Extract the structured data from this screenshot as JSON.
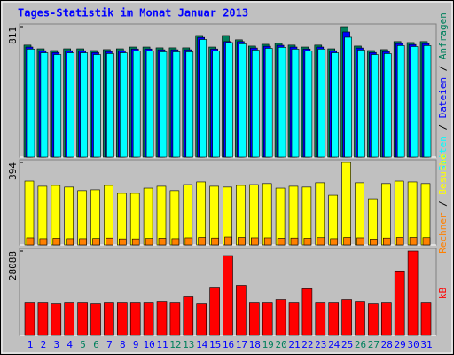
{
  "chart_data": [
    {
      "type": "bar",
      "title": "Tages-Statistik im Monat Januar 2013",
      "ylim": [
        0,
        811
      ],
      "yticks": [
        811
      ],
      "legend_separator": " / ",
      "series": [
        {
          "name": "Anfragen",
          "color": "#00805c",
          "values": [
            696,
            673,
            662,
            673,
            673,
            662,
            668,
            673,
            684,
            684,
            679,
            679,
            679,
            756,
            684,
            756,
            729,
            690,
            701,
            707,
            696,
            684,
            696,
            673,
            811,
            690,
            662,
            668,
            718,
            712,
            718
          ]
        },
        {
          "name": "Dateien",
          "color": "#0000ff",
          "values": [
            684,
            661,
            650,
            661,
            661,
            650,
            656,
            661,
            672,
            672,
            667,
            667,
            667,
            744,
            672,
            718,
            718,
            678,
            689,
            695,
            684,
            672,
            684,
            661,
            778,
            678,
            650,
            656,
            706,
            700,
            706
          ]
        },
        {
          "name": "Seiten",
          "color": "#00ffff",
          "values": [
            671,
            648,
            637,
            648,
            648,
            637,
            643,
            648,
            659,
            659,
            654,
            654,
            654,
            731,
            659,
            712,
            704,
            665,
            676,
            682,
            671,
            659,
            671,
            648,
            745,
            665,
            637,
            643,
            693,
            687,
            693
          ]
        }
      ]
    },
    {
      "type": "bar",
      "ylim": [
        0,
        394
      ],
      "yticks": [
        394
      ],
      "legend_separator": " / ",
      "series": [
        {
          "name": "Besuche",
          "color": "#ffff00",
          "values": [
            305,
            280,
            284,
            276,
            259,
            263,
            284,
            246,
            246,
            271,
            280,
            259,
            288,
            301,
            280,
            276,
            284,
            288,
            293,
            271,
            280,
            276,
            297,
            237,
            394,
            297,
            220,
            293,
            305,
            301,
            293
          ]
        },
        {
          "name": "Rechner",
          "color": "#ff8000",
          "values": [
            34,
            30,
            32,
            30,
            30,
            31,
            33,
            29,
            29,
            31,
            32,
            30,
            34,
            36,
            33,
            38,
            36,
            34,
            34,
            32,
            33,
            32,
            35,
            30,
            36,
            34,
            28,
            33,
            36,
            36,
            35
          ]
        }
      ]
    },
    {
      "type": "bar",
      "ylim": [
        0,
        28088
      ],
      "yticks": [
        28088
      ],
      "categories": [
        "1",
        "2",
        "3",
        "4",
        "5",
        "6",
        "7",
        "8",
        "9",
        "10",
        "11",
        "12",
        "13",
        "14",
        "15",
        "16",
        "17",
        "18",
        "19",
        "20",
        "21",
        "22",
        "23",
        "24",
        "25",
        "26",
        "27",
        "28",
        "29",
        "30",
        "31"
      ],
      "category_colors": [
        "#0000ff",
        "#0000ff",
        "#0000ff",
        "#0000ff",
        "#00805c",
        "#00805c",
        "#0000ff",
        "#0000ff",
        "#0000ff",
        "#0000ff",
        "#0000ff",
        "#00805c",
        "#00805c",
        "#0000ff",
        "#0000ff",
        "#0000ff",
        "#0000ff",
        "#0000ff",
        "#00805c",
        "#00805c",
        "#0000ff",
        "#0000ff",
        "#0000ff",
        "#0000ff",
        "#0000ff",
        "#00805c",
        "#00805c",
        "#0000ff",
        "#0000ff",
        "#0000ff",
        "#0000ff"
      ],
      "series": [
        {
          "name": "kB",
          "color": "#ff0000",
          "values": [
            11063,
            11063,
            10764,
            11063,
            11063,
            10764,
            11063,
            11063,
            11063,
            11063,
            11362,
            11063,
            12856,
            10764,
            16100,
            26600,
            16700,
            11063,
            11063,
            11960,
            11063,
            15550,
            11063,
            11063,
            11960,
            11362,
            10764,
            11063,
            21500,
            28088,
            11063
          ]
        }
      ]
    }
  ]
}
